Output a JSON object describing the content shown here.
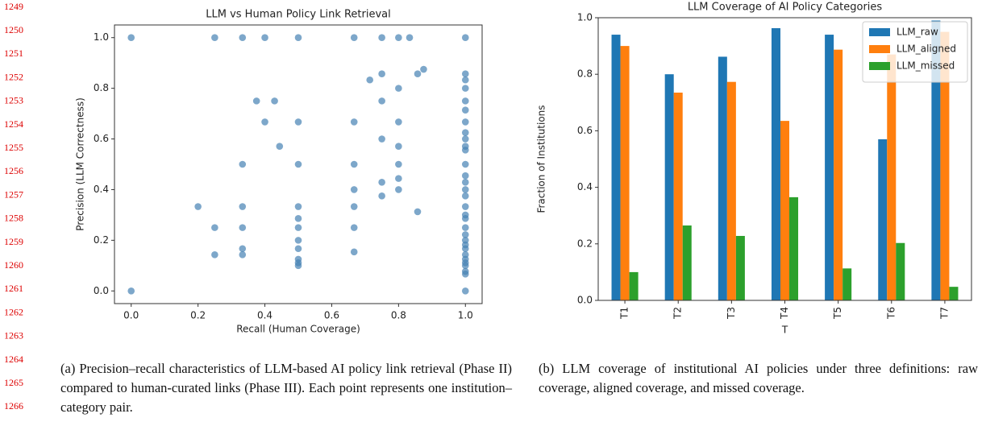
{
  "line_numbers": [
    1249,
    1250,
    1251,
    1252,
    1253,
    1254,
    1255,
    1256,
    1257,
    1258,
    1259,
    1260,
    1261,
    1262,
    1263,
    1264,
    1265,
    1266
  ],
  "chart_data": [
    {
      "type": "scatter",
      "title": "LLM vs Human Policy Link Retrieval",
      "x_label": "Recall (Human Coverage)",
      "y_label": "Precision (LLM Correctness)",
      "color": "#4682b4",
      "alpha": 0.7,
      "x": [
        0,
        0,
        0.25,
        0.333,
        0.4,
        0.5,
        0.667,
        0.75,
        0.8,
        0.833,
        1,
        0.714,
        0.75,
        0.857,
        0.875,
        0.8,
        0.75,
        0.375,
        0.429,
        0.4,
        0.5,
        0.667,
        0.8,
        0.444,
        0.75,
        0.8,
        0.333,
        0.5,
        0.667,
        0.8,
        0.8,
        0.75,
        0.75,
        0.8,
        0.667,
        0.667,
        0.857,
        0.2,
        0.333,
        0.5,
        0.25,
        0.333,
        0.5,
        0.667,
        0.5,
        0.5,
        0.333,
        0.333,
        0.5,
        0.5,
        0.5,
        0.5,
        0.667,
        0.25,
        1,
        1,
        1,
        1,
        1,
        1,
        1,
        1,
        1,
        1,
        1,
        1,
        1,
        1,
        1,
        1,
        1,
        1,
        1,
        1,
        1,
        1,
        1,
        1,
        1,
        1,
        1,
        1,
        1,
        1
      ],
      "values": [
        1,
        0,
        1,
        1,
        1,
        1,
        1,
        1,
        1,
        1,
        1,
        0.833,
        0.857,
        0.857,
        0.875,
        0.8,
        0.75,
        0.75,
        0.75,
        0.667,
        0.667,
        0.667,
        0.667,
        0.571,
        0.6,
        0.571,
        0.5,
        0.5,
        0.5,
        0.5,
        0.444,
        0.429,
        0.375,
        0.4,
        0.4,
        0.333,
        0.3125,
        0.333,
        0.333,
        0.333,
        0.25,
        0.25,
        0.25,
        0.25,
        0.2,
        0.286,
        0.167,
        0.143,
        0.167,
        0.125,
        0.111,
        0.1,
        0.154,
        0.143,
        0.857,
        0.833,
        0.8,
        0.75,
        0.714,
        0.667,
        0.625,
        0.6,
        0.571,
        0.556,
        0.5,
        0.455,
        0.429,
        0.4,
        0.375,
        0.333,
        0.3,
        0.286,
        0.25,
        0.222,
        0.2,
        0.182,
        0.167,
        0.143,
        0.125,
        0.111,
        0.1,
        0.077,
        0.0667,
        0
      ],
      "xlim": [
        -0.05,
        1.05
      ],
      "ylim": [
        -0.05,
        1.05
      ],
      "xticks": [
        {
          "value": 0,
          "label": "0.0"
        },
        0.2,
        0.4,
        0.6,
        0.8,
        {
          "value": 1,
          "label": "1.0"
        }
      ],
      "yticks": [
        {
          "value": 0,
          "label": "0.0"
        },
        0.2,
        0.4,
        0.6,
        0.8,
        {
          "value": 1,
          "label": "1.0"
        }
      ]
    },
    {
      "type": "bar",
      "title": "LLM Coverage of AI Policy Categories",
      "x_label": "T",
      "y_label": "Fraction of Institutions",
      "categories": [
        "T1",
        "T2",
        "T3",
        "T4",
        "T5",
        "T6",
        "T7"
      ],
      "series": [
        {
          "name": "LLM_raw",
          "color": "#1f77b4",
          "values": [
            0.94,
            0.8,
            0.862,
            0.963,
            0.94,
            0.57,
            0.99
          ]
        },
        {
          "name": "LLM_aligned",
          "color": "#ff7f0e",
          "values": [
            0.9,
            0.735,
            0.773,
            0.635,
            0.887,
            0.87,
            0.95
          ]
        },
        {
          "name": "LLM_missed",
          "color": "#2ca02c",
          "values": [
            0.1,
            0.265,
            0.228,
            0.365,
            0.113,
            0.203,
            0.048
          ]
        }
      ],
      "ylim": [
        0,
        1
      ],
      "legend": "upper right",
      "yticks": [
        {
          "value": 0,
          "label": "0.0"
        },
        0.2,
        0.4,
        0.6,
        0.8,
        {
          "value": 1,
          "label": "1.0"
        }
      ]
    }
  ],
  "captions": [
    "(a) Precision–recall characteristics of LLM-based AI policy link retrieval (Phase II) compared to human-curated links (Phase III). Each point represents one institution–category pair.",
    "(b) LLM coverage of institutional AI policies under three definitions: raw coverage, aligned coverage, and missed coverage."
  ]
}
